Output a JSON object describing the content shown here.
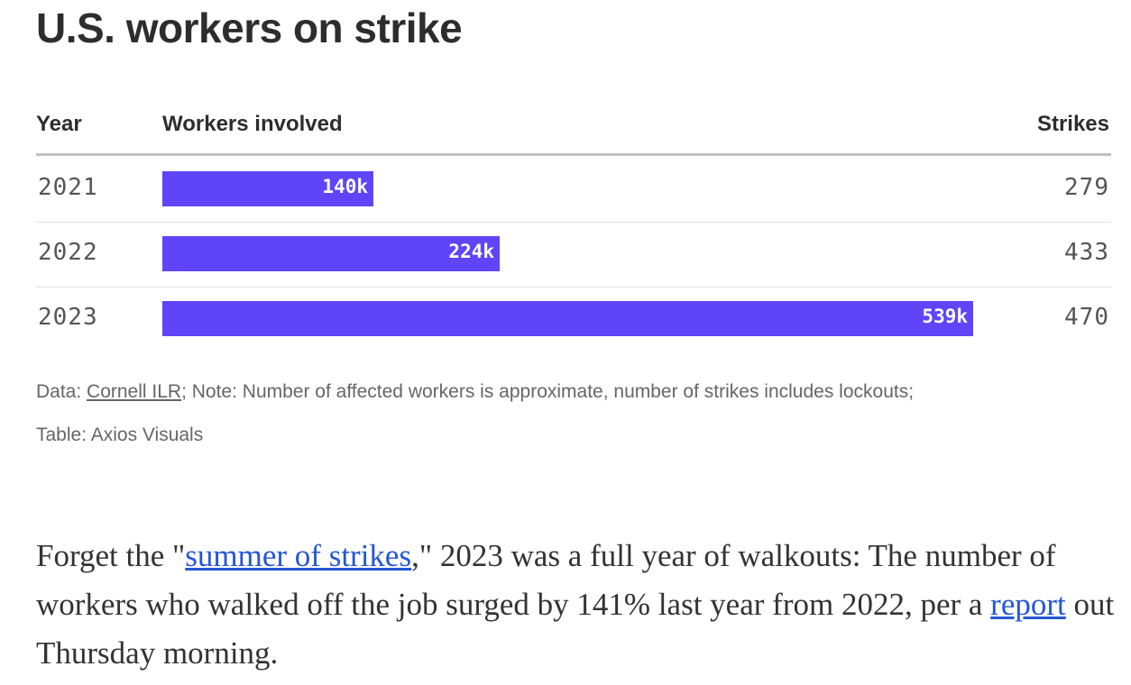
{
  "title": "U.S. workers on strike",
  "table": {
    "headers": {
      "year": "Year",
      "workers": "Workers involved",
      "strikes": "Strikes"
    }
  },
  "chart_data": {
    "type": "bar",
    "title": "U.S. workers on strike",
    "categories": [
      "2021",
      "2022",
      "2023"
    ],
    "series": [
      {
        "name": "Workers involved",
        "values": [
          140000,
          224000,
          539000
        ],
        "labels": [
          "140k",
          "224k",
          "539k"
        ]
      },
      {
        "name": "Strikes",
        "values": [
          279,
          433,
          470
        ]
      }
    ],
    "xlim": [
      0,
      539000
    ],
    "orientation": "horizontal",
    "bar_color": "#5f45f7"
  },
  "notes": {
    "data_prefix": "Data: ",
    "data_source": "Cornell ILR",
    "note_text": "; Note: Number of affected workers is approximate, number of strikes includes lockouts;",
    "table_credit": "Table: Axios Visuals"
  },
  "article": {
    "p1_a": "Forget the \"",
    "link1": "summer of strikes",
    "p1_b": ",\" 2023 was a full year of walkouts: The number of workers who walked off the job surged by 141% last year from 2022, per a ",
    "link2": "report",
    "p1_c": " out Thursday morning."
  }
}
